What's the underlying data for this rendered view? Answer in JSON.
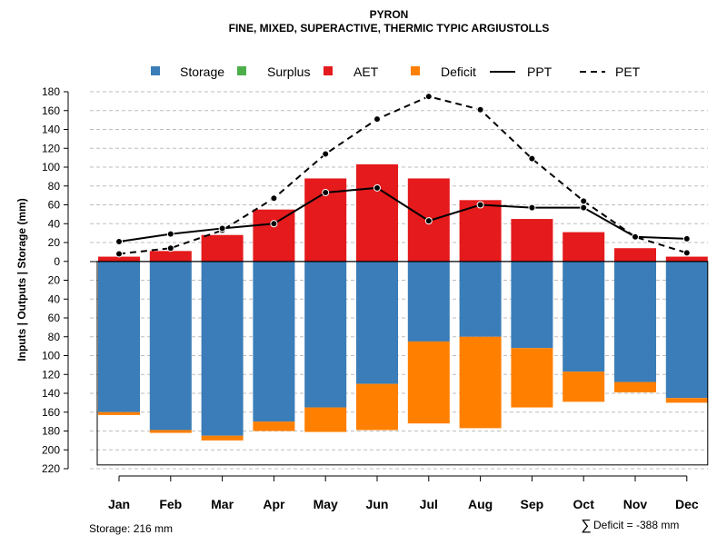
{
  "chart_data": {
    "type": "bar",
    "title": "PYRON",
    "subtitle": "FINE, MIXED, SUPERACTIVE, THERMIC TYPIC ARGIUSTOLLS",
    "ylabel": "Inputs | Outputs | Storage     (mm)",
    "ylim": [
      -220,
      180
    ],
    "y_ticks": [
      180,
      160,
      140,
      120,
      100,
      80,
      60,
      40,
      20,
      0,
      -20,
      -40,
      -60,
      -80,
      -100,
      -120,
      -140,
      -160,
      -180,
      -200,
      -220
    ],
    "y_tick_labels": [
      "180",
      "160",
      "140",
      "120",
      "100",
      "80",
      "60",
      "40",
      "20",
      "0",
      "20",
      "40",
      "60",
      "80",
      "100",
      "120",
      "140",
      "160",
      "180",
      "200",
      "220"
    ],
    "categories": [
      "Jan",
      "Feb",
      "Mar",
      "Apr",
      "May",
      "Jun",
      "Jul",
      "Aug",
      "Sep",
      "Oct",
      "Nov",
      "Dec"
    ],
    "series": [
      {
        "name": "Storage",
        "values": [
          160,
          179,
          185,
          170,
          155,
          130,
          85,
          80,
          92,
          117,
          128,
          145
        ]
      },
      {
        "name": "Surplus",
        "values": [
          0,
          0,
          0,
          0,
          0,
          0,
          0,
          0,
          0,
          0,
          0,
          0
        ]
      },
      {
        "name": "AET",
        "values": [
          5,
          11,
          28,
          55,
          88,
          103,
          88,
          65,
          45,
          31,
          14,
          5
        ]
      },
      {
        "name": "Deficit",
        "values": [
          3,
          3,
          5,
          10,
          26,
          49,
          87,
          97,
          63,
          32,
          11,
          5
        ]
      },
      {
        "name": "PPT",
        "values": [
          21,
          29,
          35,
          40,
          73,
          78,
          43,
          60,
          57,
          57,
          26,
          24
        ]
      },
      {
        "name": "PET",
        "values": [
          8,
          14,
          33,
          67,
          114,
          151,
          175,
          161,
          109,
          64,
          26,
          9
        ]
      }
    ],
    "colors": {
      "Storage": "#3A7DB8",
      "Surplus": "#4DAF4A",
      "AET": "#E41A1C",
      "Deficit": "#FF7F00",
      "PPT": "#000000",
      "PET": "#000000"
    },
    "legend": {
      "position": "top",
      "entries": [
        "Storage",
        "Surplus",
        "AET",
        "Deficit",
        "PPT",
        "PET"
      ]
    },
    "storage_capacity": 216,
    "grid": true
  },
  "footer": {
    "storage_text": "Storage: 216 mm",
    "deficit_symbol": "∑",
    "deficit_text": "Deficit = -388 mm"
  }
}
